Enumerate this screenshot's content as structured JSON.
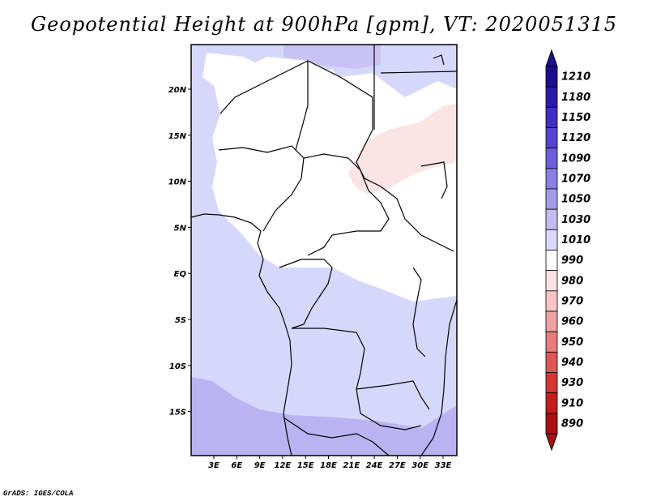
{
  "title": "Geopotential Height at 900hPa [gpm], VT: 2020051315",
  "footer": "GrADS: IGES/COLA",
  "map": {
    "lon_ticks": [
      "3E",
      "6E",
      "9E",
      "12E",
      "15E",
      "18E",
      "21E",
      "24E",
      "27E",
      "30E",
      "33E"
    ],
    "lat_ticks": [
      "20N",
      "15N",
      "10N",
      "5N",
      "EQ",
      "5S",
      "10S",
      "15S"
    ],
    "fill_colors": {
      "ocean_north": "#d6d8fb",
      "ocean_south": "#d6d8fb",
      "ocean_far_south": "#b9b3f2",
      "land_white": "#ffffff",
      "pink": "#fbe4e4",
      "purple_patch": "#c9c3f5"
    }
  },
  "colorbar": {
    "labels": [
      "1210",
      "1180",
      "1150",
      "1120",
      "1090",
      "1070",
      "1050",
      "1030",
      "1010",
      "990",
      "980",
      "970",
      "960",
      "950",
      "940",
      "930",
      "910",
      "890"
    ],
    "colors": [
      "#1d0f8c",
      "#2b1aa8",
      "#3f2fc0",
      "#5444cf",
      "#6d5fd9",
      "#8a7fe2",
      "#a49ce9",
      "#c1bcf2",
      "#dcdafa",
      "#ffffff",
      "#fde2e2",
      "#f8c4c4",
      "#f0a2a2",
      "#e77c7c",
      "#de5656",
      "#d23636",
      "#c11f1f",
      "#a81212"
    ]
  }
}
